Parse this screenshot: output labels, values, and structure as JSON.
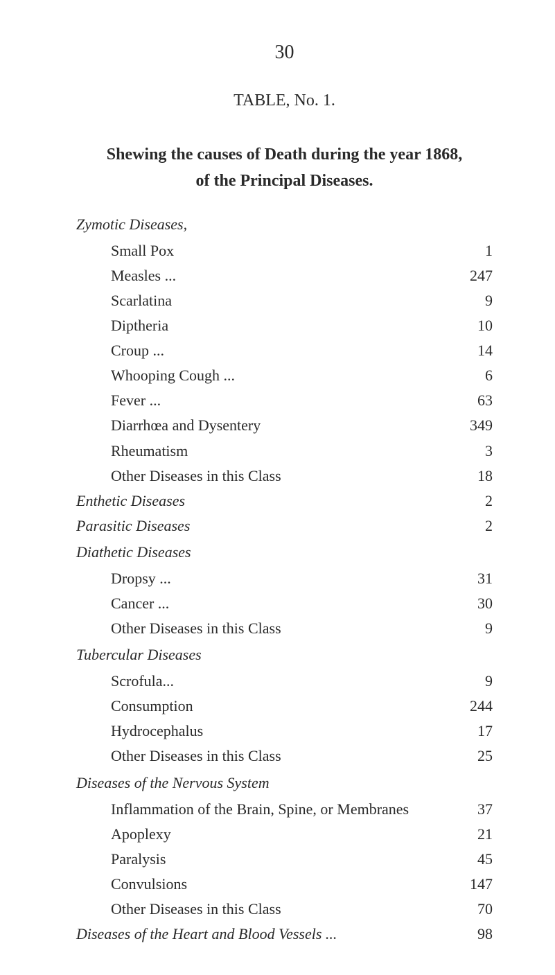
{
  "page_number": "30",
  "table_title": "TABLE, No. 1.",
  "main_title_line1": "Shewing the causes of Death during the year 1868,",
  "main_title_line2": "of the Principal Diseases.",
  "sections": {
    "zymotic": {
      "heading": "Zymotic Diseases,",
      "items": [
        {
          "label": "Small Pox",
          "value": "1"
        },
        {
          "label": "Measles ...",
          "value": "247"
        },
        {
          "label": "Scarlatina",
          "value": "9"
        },
        {
          "label": "Diptheria",
          "value": "10"
        },
        {
          "label": "Croup ...",
          "value": "14"
        },
        {
          "label": "Whooping Cough ...",
          "value": "6"
        },
        {
          "label": "Fever ...",
          "value": "63"
        },
        {
          "label": "Diarrhœa and Dysentery",
          "value": "349"
        },
        {
          "label": "Rheumatism",
          "value": "3"
        },
        {
          "label": "Other Diseases in this Class",
          "value": "18"
        }
      ]
    },
    "enthetic": {
      "heading": "Enthetic Diseases",
      "value": "2"
    },
    "parasitic": {
      "heading": "Parasitic Diseases",
      "value": "2"
    },
    "diathetic": {
      "heading": "Diathetic Diseases",
      "items": [
        {
          "label": "Dropsy ...",
          "value": "31"
        },
        {
          "label": "Cancer ...",
          "value": "30"
        },
        {
          "label": "Other Diseases in this Class",
          "value": "9"
        }
      ]
    },
    "tubercular": {
      "heading": "Tubercular Diseases",
      "items": [
        {
          "label": "Scrofula...",
          "value": "9"
        },
        {
          "label": "Consumption",
          "value": "244"
        },
        {
          "label": "Hydrocephalus",
          "value": "17"
        },
        {
          "label": "Other Diseases in this Class",
          "value": "25"
        }
      ]
    },
    "nervous": {
      "heading": "Diseases of the Nervous System",
      "items": [
        {
          "label": "Inflammation of the Brain, Spine, or Membranes",
          "value": "37"
        },
        {
          "label": "Apoplexy",
          "value": "21"
        },
        {
          "label": "Paralysis",
          "value": "45"
        },
        {
          "label": "Convulsions",
          "value": "147"
        },
        {
          "label": "Other Diseases in this Class",
          "value": "70"
        }
      ]
    },
    "heart": {
      "heading": "Diseases of the Heart and Blood Vessels ...",
      "value": "98"
    }
  },
  "colors": {
    "background": "#ffffff",
    "text": "#2a2a2a"
  },
  "typography": {
    "font_family": "Times New Roman",
    "page_number_size": 28,
    "title_size": 24,
    "body_size": 22
  }
}
